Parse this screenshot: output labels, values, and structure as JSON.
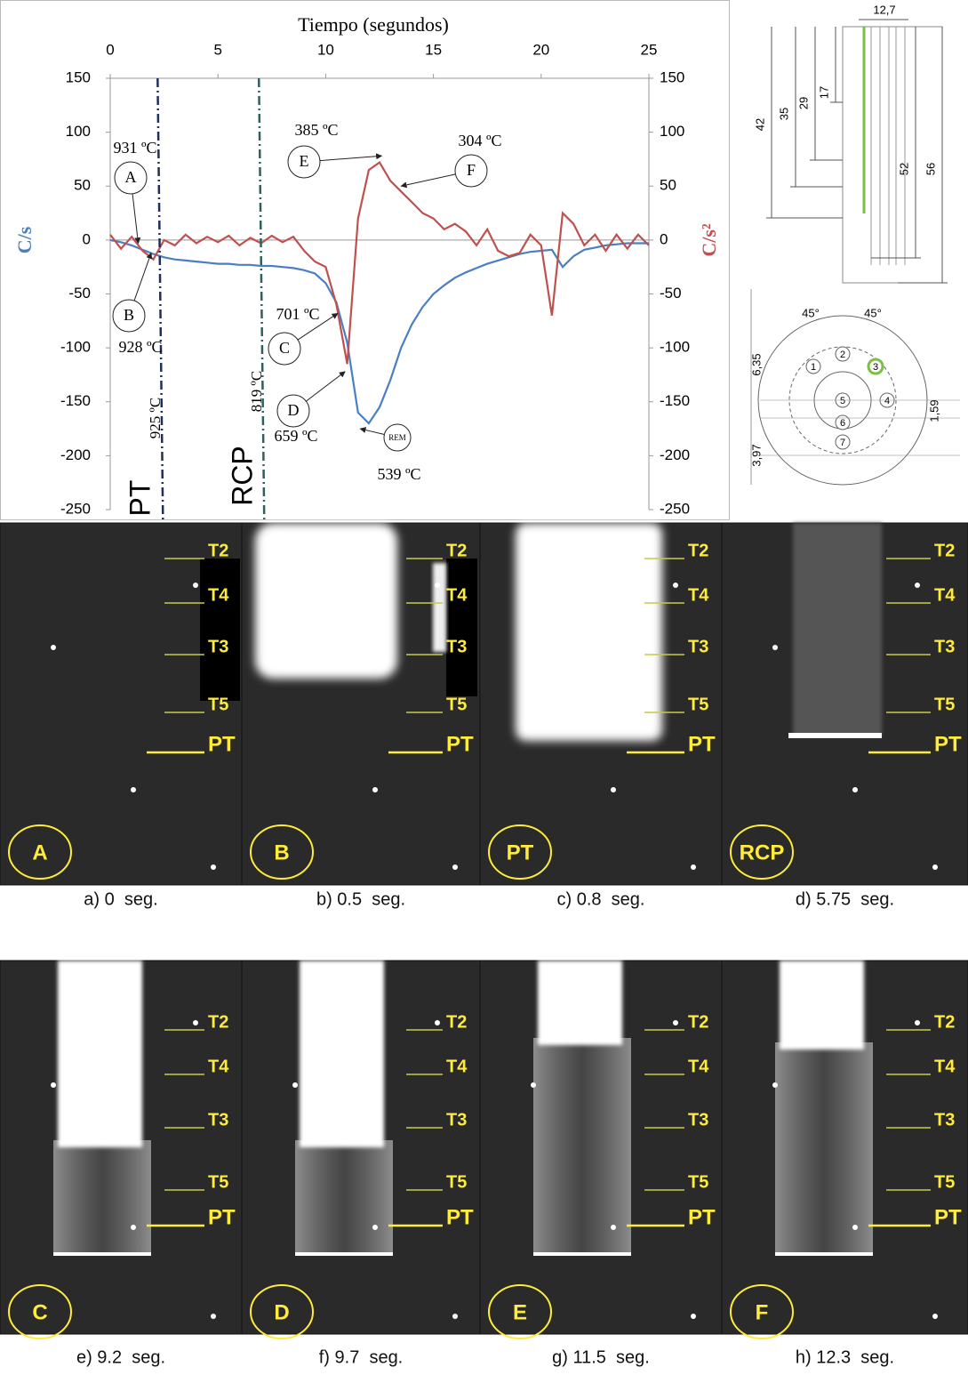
{
  "chart_data": {
    "type": "line",
    "title": "Tiempo (segundos)",
    "y_label": "C/s",
    "y2_label": "C/s²",
    "x": [
      0,
      0.5,
      1,
      1.5,
      2,
      2.5,
      3,
      3.5,
      4,
      4.5,
      5,
      5.5,
      6,
      6.5,
      7,
      7.5,
      8,
      8.5,
      9,
      9.5,
      10,
      10.5,
      11,
      11.5,
      12,
      12.5,
      13,
      13.5,
      14,
      14.5,
      15,
      15.5,
      16,
      16.5,
      17,
      17.5,
      18,
      18.5,
      19,
      19.5,
      20,
      20.5,
      21,
      21.5,
      22,
      22.5,
      23,
      23.5,
      24,
      24.5,
      25
    ],
    "series": [
      {
        "name": "C/s",
        "color": "#4a7fc1",
        "values": [
          0,
          -2,
          -5,
          -9,
          -13,
          -16,
          -18,
          -19,
          -20,
          -21,
          -22,
          -22,
          -23,
          -23,
          -24,
          -24,
          -25,
          -26,
          -28,
          -31,
          -40,
          -58,
          -95,
          -160,
          -170,
          -155,
          -130,
          -100,
          -78,
          -62,
          -50,
          -42,
          -35,
          -30,
          -26,
          -22,
          -19,
          -16,
          -13,
          -11,
          -10,
          -9,
          -25,
          -15,
          -9,
          -7,
          -5,
          -4,
          -3,
          -3,
          -3
        ]
      },
      {
        "name": "C/s²",
        "color": "#c0504d",
        "axis": "y2",
        "values": [
          5,
          -8,
          3,
          -10,
          -18,
          0,
          -5,
          5,
          -3,
          3,
          -2,
          4,
          -5,
          2,
          -3,
          4,
          -2,
          3,
          -10,
          -20,
          -25,
          -60,
          -115,
          20,
          65,
          72,
          55,
          45,
          35,
          25,
          20,
          10,
          15,
          8,
          -5,
          10,
          -10,
          -15,
          -12,
          5,
          -5,
          -70,
          25,
          15,
          -5,
          5,
          -10,
          5,
          -8,
          5,
          -5
        ]
      }
    ],
    "xlim": [
      0,
      25
    ],
    "xticks": [
      0,
      5,
      10,
      15,
      20,
      25
    ],
    "ylim": [
      -250,
      150
    ],
    "yticks": [
      -250,
      -200,
      -150,
      -100,
      -50,
      0,
      50,
      100,
      150
    ],
    "y2lim": [
      -250,
      150
    ],
    "y2ticks": [
      -250,
      -200,
      -150,
      -100,
      -50,
      0,
      50,
      100,
      150
    ],
    "annotations": [
      {
        "label": "A",
        "temp": "931 ºC",
        "x": 1.3,
        "y": -3
      },
      {
        "label": "B",
        "temp": "928 ºC",
        "x": 1.9,
        "y": -12
      },
      {
        "label": "C",
        "temp": "701 ºC",
        "x": 10.56,
        "y": -68
      },
      {
        "label": "D",
        "temp": "659 ºC",
        "x": 10.9,
        "y": -122
      },
      {
        "label": "E",
        "temp": "385 ºC",
        "x": 12.6,
        "y": 78
      },
      {
        "label": "F",
        "temp": "304 ºC",
        "x": 13.5,
        "y": 50
      },
      {
        "label": "REM",
        "temp": "539 ºC",
        "x": 11.6,
        "y": -175
      }
    ],
    "vlines": [
      {
        "label": "PT",
        "temp": "925 ºC",
        "x": 2.2
      },
      {
        "label": "RCP",
        "temp": "819 ºC",
        "x": 6.9
      }
    ]
  },
  "diagram_side": {
    "width_label": "12,7",
    "dims": [
      "42",
      "35",
      "29",
      "17",
      "52",
      "56"
    ]
  },
  "diagram_top": {
    "angles": [
      "45°",
      "45°"
    ],
    "dims": [
      "6,35",
      "1,59",
      "3,97"
    ],
    "holes": [
      "1",
      "2",
      "3",
      "4",
      "5",
      "6",
      "7"
    ]
  },
  "photos": {
    "markers": [
      "T2",
      "T4",
      "T3",
      "T5",
      "PT"
    ],
    "panels": [
      {
        "label": "A",
        "caption": "a) 0  seg."
      },
      {
        "label": "B",
        "caption": "b) 0.5  seg."
      },
      {
        "label": "PT",
        "caption": "c) 0.8  seg."
      },
      {
        "label": "RCP",
        "caption": "d) 5.75  seg."
      },
      {
        "label": "C",
        "caption": "e) 9.2  seg."
      },
      {
        "label": "D",
        "caption": "f) 9.7  seg."
      },
      {
        "label": "E",
        "caption": "g) 11.5  seg."
      },
      {
        "label": "F",
        "caption": "h) 12.3  seg."
      }
    ]
  }
}
